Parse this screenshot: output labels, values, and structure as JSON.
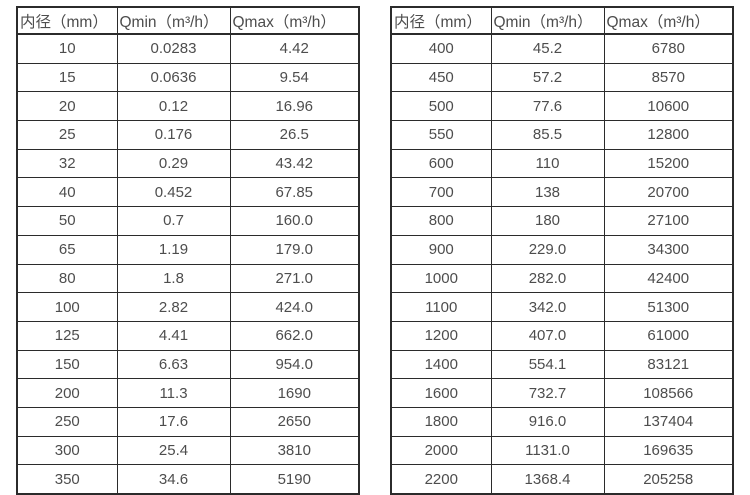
{
  "tables": [
    {
      "name": "small-diameter-flow-ranges",
      "headers": [
        "内径（mm）",
        "Qmin（m³/h）",
        "Qmax（m³/h）"
      ],
      "rows": [
        [
          "10",
          "0.0283",
          "4.42"
        ],
        [
          "15",
          "0.0636",
          "9.54"
        ],
        [
          "20",
          "0.12",
          "16.96"
        ],
        [
          "25",
          "0.176",
          "26.5"
        ],
        [
          "32",
          "0.29",
          "43.42"
        ],
        [
          "40",
          "0.452",
          "67.85"
        ],
        [
          "50",
          "0.7",
          "160.0"
        ],
        [
          "65",
          "1.19",
          "179.0"
        ],
        [
          "80",
          "1.8",
          "271.0"
        ],
        [
          "100",
          "2.82",
          "424.0"
        ],
        [
          "125",
          "4.41",
          "662.0"
        ],
        [
          "150",
          "6.63",
          "954.0"
        ],
        [
          "200",
          "11.3",
          "1690"
        ],
        [
          "250",
          "17.6",
          "2650"
        ],
        [
          "300",
          "25.4",
          "3810"
        ],
        [
          "350",
          "34.6",
          "5190"
        ]
      ]
    },
    {
      "name": "large-diameter-flow-ranges",
      "headers": [
        "内径（mm）",
        "Qmin（m³/h）",
        "Qmax（m³/h）"
      ],
      "rows": [
        [
          "400",
          "45.2",
          "6780"
        ],
        [
          "450",
          "57.2",
          "8570"
        ],
        [
          "500",
          "77.6",
          "10600"
        ],
        [
          "550",
          "85.5",
          "12800"
        ],
        [
          "600",
          "110",
          "15200"
        ],
        [
          "700",
          "138",
          "20700"
        ],
        [
          "800",
          "180",
          "27100"
        ],
        [
          "900",
          "229.0",
          "34300"
        ],
        [
          "1000",
          "282.0",
          "42400"
        ],
        [
          "1100",
          "342.0",
          "51300"
        ],
        [
          "1200",
          "407.0",
          "61000"
        ],
        [
          "1400",
          "554.1",
          "83121"
        ],
        [
          "1600",
          "732.7",
          "108566"
        ],
        [
          "1800",
          "916.0",
          "137404"
        ],
        [
          "2000",
          "1131.0",
          "169635"
        ],
        [
          "2200",
          "1368.4",
          "205258"
        ]
      ]
    }
  ],
  "colors": {
    "border": "#2b2b2b",
    "text": "#4d4d4d",
    "background": "#ffffff"
  }
}
